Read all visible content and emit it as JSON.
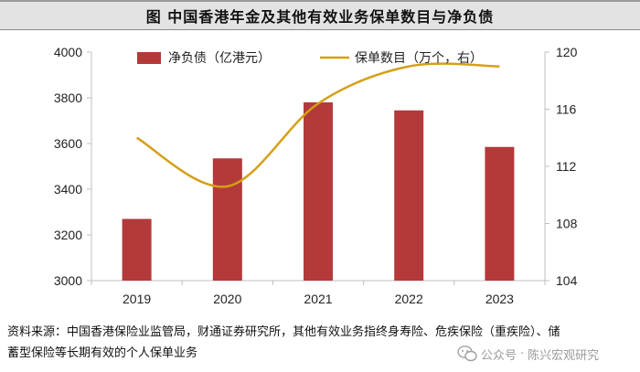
{
  "title": "图  中国香港年金及其他有效业务保单数目与净负债",
  "source_text": "资料来源：中国香港保险业监管局，财通证券研究所，其他有效业务指终身寿险、危疾保险（重疾险）、储蓄型保险等长期有效的个人保单业务",
  "watermark": {
    "prefix": "公众号",
    "separator": "·",
    "name": "陈兴宏观研究"
  },
  "colors": {
    "bar": "#b33a3a",
    "line": "#d4a017",
    "axis": "#bfbfbf",
    "text": "#222222"
  },
  "chart_data": {
    "type": "bar+line",
    "categories": [
      "2019",
      "2020",
      "2021",
      "2022",
      "2023"
    ],
    "series": [
      {
        "name": "净负债（亿港元）",
        "type": "bar",
        "axis": "left",
        "values": [
          3270,
          3535,
          3780,
          3745,
          3585
        ]
      },
      {
        "name": "保单数目（万个，右）",
        "type": "line",
        "axis": "right",
        "values": [
          114.0,
          110.6,
          116.4,
          119.0,
          119.0
        ]
      }
    ],
    "y_left": {
      "min": 3000,
      "max": 4000,
      "ticks": [
        3000,
        3200,
        3400,
        3600,
        3800,
        4000
      ]
    },
    "y_right": {
      "min": 104,
      "max": 120,
      "ticks": [
        104,
        108,
        112,
        116,
        120
      ]
    },
    "legend": [
      "净负债（亿港元）",
      "保单数目（万个，右）"
    ],
    "legend_position": "top"
  }
}
